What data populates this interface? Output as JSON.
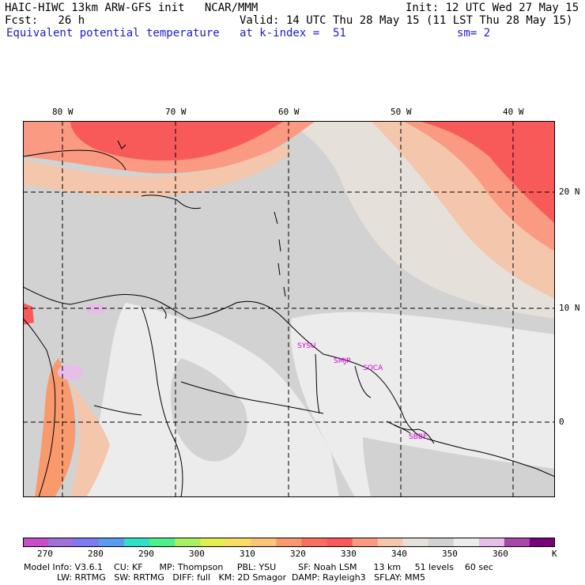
{
  "header": {
    "line1_left": "HAIC-HIWC 13km ARW-GFS init   NCAR/MMM",
    "line1_right": "Init: 12 UTC Wed 27 May 15",
    "line2_left": "Fcst:   26 h",
    "line2_right": "Valid: 14 UTC Thu 28 May 15 (11 LST Thu 28 May 15)",
    "line3_left": "Equivalent potential temperature",
    "line3_mid": "at k-index =  51",
    "line3_right": "sm= 2"
  },
  "map": {
    "lon_labels": [
      "80 W",
      "70 W",
      "60 W",
      "50 W",
      "40 W"
    ],
    "lat_labels": [
      "20 N",
      "10 N",
      "0"
    ],
    "stations": [
      "SYSU",
      "SMJP",
      "SOCA",
      "SBBE"
    ]
  },
  "colorbar": {
    "levels": [
      "270",
      "280",
      "290",
      "300",
      "310",
      "320",
      "330",
      "340",
      "350",
      "360"
    ],
    "unit": "K",
    "colors": [
      "#c84ec8",
      "#a070dc",
      "#7c7cf0",
      "#5a9cf0",
      "#32e0c8",
      "#4cf08c",
      "#a8f060",
      "#e0f050",
      "#f8dc64",
      "#fcc478",
      "#f89a6e",
      "#f87060",
      "#f85a5a",
      "#fa9a82",
      "#f4c6ac",
      "#e6e0da",
      "#d2d2d2",
      "#ececec",
      "#e6bee6",
      "#a848a8",
      "#780078"
    ]
  },
  "model_info": {
    "line1": "Model Info: V3.6.1    CU: KF      MP: Thompson     PBL: YSU        SF: Noah LSM      13 km     51 levels    60 sec",
    "line2": "            LW: RRTMG   SW: RRTMG   DIFF: full   KM: 2D Smagor  DAMP: Rayleigh3   SFLAY: MM5"
  }
}
